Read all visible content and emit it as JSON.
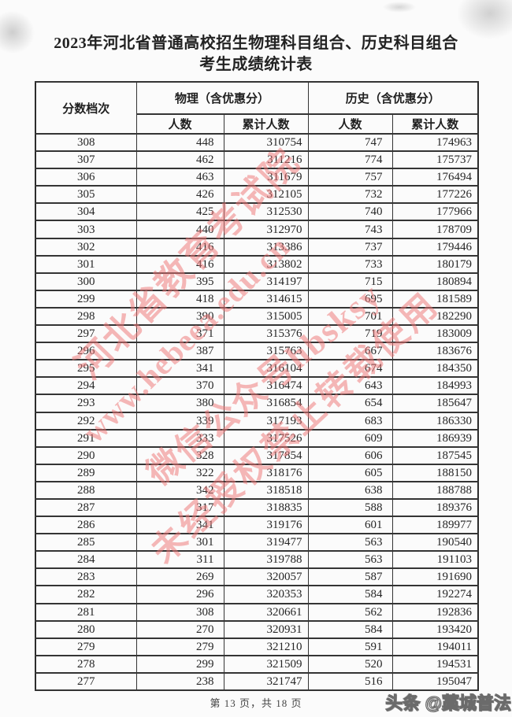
{
  "page": {
    "title_line1": "2023年河北省普通高校招生物理科目组合、历史科目组合",
    "title_line2": "考生成绩统计表",
    "footer": "第 13 页，共 18 页"
  },
  "table": {
    "headers": {
      "score_tier": "分数档次",
      "physics_group": "物理（含优惠分）",
      "history_group": "历史（含优惠分）",
      "count": "人数",
      "cumulative": "累计人数"
    },
    "columns": [
      "分数档次",
      "物理人数",
      "物理累计人数",
      "历史人数",
      "历史累计人数"
    ],
    "rows": [
      [
        308,
        448,
        310754,
        747,
        174963
      ],
      [
        307,
        462,
        311216,
        774,
        175737
      ],
      [
        306,
        463,
        311679,
        757,
        176494
      ],
      [
        305,
        426,
        312105,
        732,
        177226
      ],
      [
        304,
        425,
        312530,
        740,
        177966
      ],
      [
        303,
        440,
        312970,
        743,
        178709
      ],
      [
        302,
        416,
        313386,
        737,
        179446
      ],
      [
        301,
        416,
        313802,
        733,
        180179
      ],
      [
        300,
        395,
        314197,
        715,
        180894
      ],
      [
        299,
        418,
        314615,
        695,
        181589
      ],
      [
        298,
        390,
        315005,
        701,
        182290
      ],
      [
        297,
        371,
        315376,
        719,
        183009
      ],
      [
        296,
        387,
        315763,
        667,
        183676
      ],
      [
        295,
        341,
        316104,
        674,
        184350
      ],
      [
        294,
        370,
        316474,
        643,
        184993
      ],
      [
        293,
        380,
        316854,
        654,
        185647
      ],
      [
        292,
        339,
        317193,
        683,
        186330
      ],
      [
        291,
        333,
        317526,
        609,
        186939
      ],
      [
        290,
        328,
        317854,
        606,
        187545
      ],
      [
        289,
        322,
        318176,
        605,
        188150
      ],
      [
        288,
        342,
        318518,
        638,
        188788
      ],
      [
        287,
        317,
        318835,
        588,
        189376
      ],
      [
        286,
        341,
        319176,
        601,
        189977
      ],
      [
        285,
        301,
        319477,
        563,
        190540
      ],
      [
        284,
        311,
        319788,
        563,
        191103
      ],
      [
        283,
        269,
        320057,
        587,
        191690
      ],
      [
        282,
        296,
        320353,
        584,
        192274
      ],
      [
        281,
        308,
        320661,
        562,
        192836
      ],
      [
        280,
        270,
        320931,
        584,
        193420
      ],
      [
        279,
        279,
        321210,
        591,
        194011
      ],
      [
        278,
        299,
        321509,
        520,
        194531
      ],
      [
        277,
        238,
        321747,
        516,
        195047
      ]
    ]
  },
  "watermarks": {
    "lines": [
      "河北省教育考试院",
      "www.hebeea.edu.cn",
      "微信公众号hbsksy",
      "未经授权禁止转载使用"
    ],
    "credit": "头条 @藁城普法",
    "diagonal_color": "#ee7676",
    "border_color": "#343434"
  }
}
